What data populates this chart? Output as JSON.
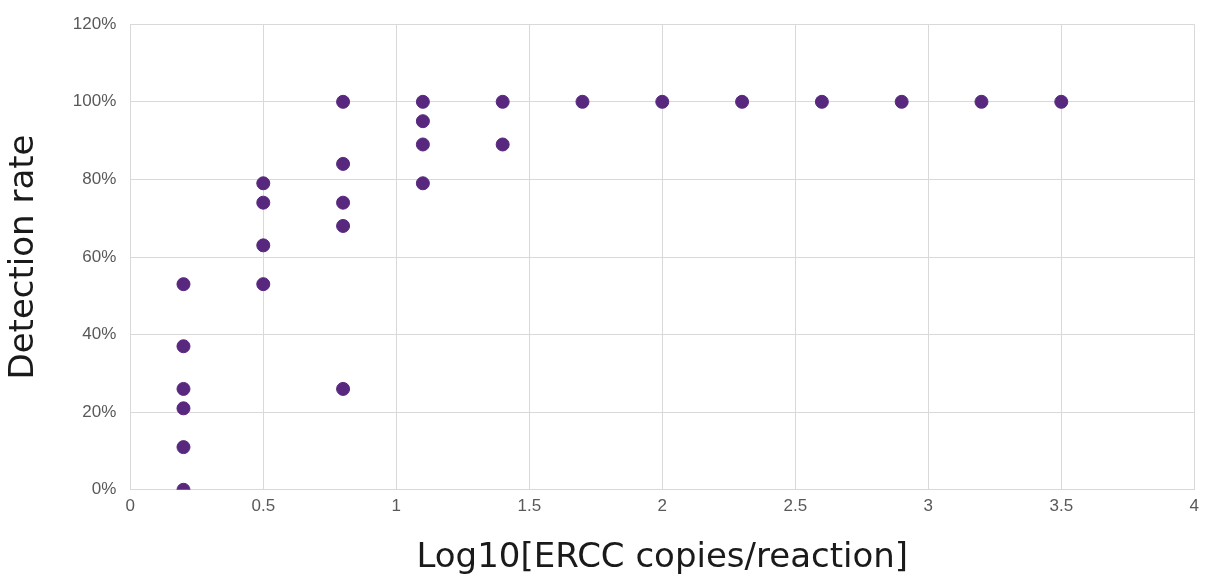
{
  "chart_data": {
    "type": "scatter",
    "xlabel": "Log10[ERCC copies/reaction]",
    "ylabel": "Detection rate",
    "series": [
      {
        "color": "#58287f",
        "x": [
          0.2,
          0.2,
          0.2,
          0.2,
          0.2,
          0.2,
          0.5,
          0.5,
          0.5,
          0.5,
          0.8,
          0.8,
          0.8,
          0.8,
          0.8,
          1.1,
          1.1,
          1.1,
          1.1,
          1.4,
          1.4,
          1.7,
          2.0,
          2.3,
          2.6,
          2.9,
          3.2,
          3.5
        ],
        "values": [
          53,
          37,
          26,
          21,
          11,
          0,
          79,
          74,
          63,
          53,
          100,
          84,
          74,
          68,
          26,
          100,
          95,
          89,
          79,
          100,
          89,
          100,
          100,
          100,
          100,
          100,
          100,
          100
        ]
      }
    ],
    "xlim": [
      0,
      4
    ],
    "xticks": [
      0,
      0.5,
      1,
      1.5,
      2,
      2.5,
      3,
      3.5,
      4
    ],
    "ylim": [
      0,
      120
    ],
    "yticks": [
      {
        "value": 0,
        "label": "0%"
      },
      {
        "value": 20,
        "label": "20%"
      },
      {
        "value": 40,
        "label": "40%"
      },
      {
        "value": 60,
        "label": "60%"
      },
      {
        "value": 80,
        "label": "80%"
      },
      {
        "value": 100,
        "label": "100%"
      },
      {
        "value": 120,
        "label": "120%"
      }
    ],
    "grid": true,
    "legend": false,
    "marker": "circle"
  }
}
